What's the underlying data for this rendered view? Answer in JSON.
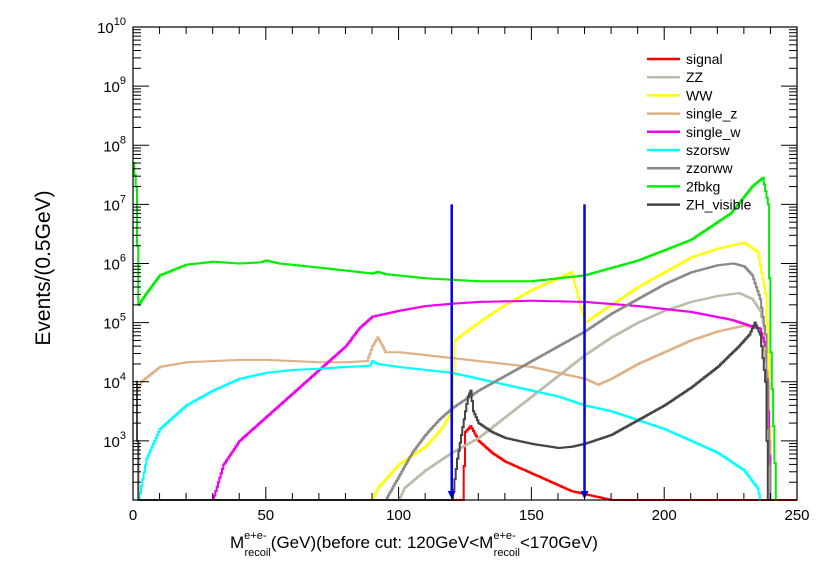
{
  "chart_data": {
    "type": "line",
    "style": "step-histogram",
    "title": "",
    "ylabel": "Events/(0.5GeV)",
    "xlabel": {
      "main": "M",
      "sup": "e+e-",
      "sub": "recoil",
      "rest": "(GeV)(before cut: 120GeV<M",
      "sup2": "e+e-",
      "sub2": "recoil",
      "rest2": "<170GeV)"
    },
    "xlim": [
      0,
      250
    ],
    "ylim_log10": [
      2,
      10
    ],
    "yscale": "log",
    "x_ticks": [
      {
        "value": 0,
        "label": "0"
      },
      {
        "value": 50,
        "label": "50"
      },
      {
        "value": 100,
        "label": "100"
      },
      {
        "value": 150,
        "label": "150"
      },
      {
        "value": 200,
        "label": "200"
      },
      {
        "value": 250,
        "label": "250"
      }
    ],
    "y_ticks": [
      {
        "exp": 3,
        "base": "10",
        "sup": "3"
      },
      {
        "exp": 4,
        "base": "10",
        "sup": "4"
      },
      {
        "exp": 5,
        "base": "10",
        "sup": "5"
      },
      {
        "exp": 6,
        "base": "10",
        "sup": "6"
      },
      {
        "exp": 7,
        "base": "10",
        "sup": "7"
      },
      {
        "exp": 8,
        "base": "10",
        "sup": "8"
      },
      {
        "exp": 9,
        "base": "10",
        "sup": "9"
      },
      {
        "exp": 10,
        "base": "10",
        "sup": "10"
      }
    ],
    "cut_lines": [
      {
        "x": 120,
        "top_log10": 7.0,
        "color": "#0000ee"
      },
      {
        "x": 170,
        "top_log10": 7.0,
        "color": "#0000ee"
      }
    ],
    "legend_position": "top-right",
    "series": [
      {
        "name": "signal",
        "color": "#ff0000",
        "points": [
          [
            120,
            2
          ],
          [
            124,
            2
          ],
          [
            125,
            3.15
          ],
          [
            127,
            3.25
          ],
          [
            130,
            3.0
          ],
          [
            135,
            2.8
          ],
          [
            140,
            2.65
          ],
          [
            145,
            2.55
          ],
          [
            150,
            2.45
          ],
          [
            155,
            2.35
          ],
          [
            160,
            2.25
          ],
          [
            165,
            2.15
          ],
          [
            170,
            2.1
          ],
          [
            175,
            2.05
          ],
          [
            180,
            2.0
          ],
          [
            250,
            2.0
          ]
        ]
      },
      {
        "name": "ZZ",
        "color": "#bbbba8",
        "points": [
          [
            100,
            2.0
          ],
          [
            102,
            2.2
          ],
          [
            110,
            2.5
          ],
          [
            120,
            2.8
          ],
          [
            130,
            3.05
          ],
          [
            140,
            3.4
          ],
          [
            150,
            3.75
          ],
          [
            160,
            4.1
          ],
          [
            170,
            4.45
          ],
          [
            180,
            4.75
          ],
          [
            190,
            5.0
          ],
          [
            200,
            5.2
          ],
          [
            210,
            5.35
          ],
          [
            220,
            5.45
          ],
          [
            228,
            5.5
          ],
          [
            233,
            5.4
          ],
          [
            236,
            5.2
          ],
          [
            238,
            4.8
          ],
          [
            239,
            3.5
          ],
          [
            240,
            2.0
          ]
        ]
      },
      {
        "name": "WW",
        "color": "#ffff00",
        "points": [
          [
            90,
            2.0
          ],
          [
            92,
            2.2
          ],
          [
            100,
            2.6
          ],
          [
            110,
            2.9
          ],
          [
            116,
            3.2
          ],
          [
            120,
            3.5
          ],
          [
            121,
            4.7
          ],
          [
            130,
            5.0
          ],
          [
            140,
            5.3
          ],
          [
            150,
            5.55
          ],
          [
            160,
            5.75
          ],
          [
            165,
            5.85
          ],
          [
            170,
            5.0
          ],
          [
            180,
            5.3
          ],
          [
            190,
            5.6
          ],
          [
            200,
            5.85
          ],
          [
            210,
            6.1
          ],
          [
            220,
            6.25
          ],
          [
            230,
            6.35
          ],
          [
            235,
            6.2
          ],
          [
            238,
            5.5
          ],
          [
            239,
            4.5
          ],
          [
            240,
            2.0
          ]
        ]
      },
      {
        "name": "single_z",
        "color": "#ddb185",
        "points": [
          [
            1,
            3.8
          ],
          [
            3,
            4.0
          ],
          [
            10,
            4.25
          ],
          [
            20,
            4.33
          ],
          [
            30,
            4.35
          ],
          [
            40,
            4.37
          ],
          [
            50,
            4.37
          ],
          [
            60,
            4.35
          ],
          [
            70,
            4.33
          ],
          [
            80,
            4.33
          ],
          [
            88,
            4.35
          ],
          [
            90,
            4.6
          ],
          [
            92,
            4.75
          ],
          [
            95,
            4.5
          ],
          [
            100,
            4.5
          ],
          [
            110,
            4.45
          ],
          [
            120,
            4.4
          ],
          [
            130,
            4.35
          ],
          [
            140,
            4.3
          ],
          [
            150,
            4.25
          ],
          [
            160,
            4.15
          ],
          [
            170,
            4.05
          ],
          [
            175,
            3.95
          ],
          [
            180,
            4.05
          ],
          [
            190,
            4.3
          ],
          [
            200,
            4.5
          ],
          [
            210,
            4.7
          ],
          [
            220,
            4.85
          ],
          [
            230,
            4.95
          ],
          [
            235,
            4.9
          ],
          [
            237,
            4.7
          ],
          [
            239,
            4.0
          ],
          [
            240,
            2.0
          ]
        ]
      },
      {
        "name": "single_w",
        "color": "#ee00ee",
        "points": [
          [
            30,
            2.0
          ],
          [
            34,
            2.6
          ],
          [
            40,
            3.0
          ],
          [
            50,
            3.4
          ],
          [
            60,
            3.8
          ],
          [
            70,
            4.2
          ],
          [
            80,
            4.6
          ],
          [
            85,
            4.9
          ],
          [
            90,
            5.1
          ],
          [
            100,
            5.2
          ],
          [
            110,
            5.28
          ],
          [
            120,
            5.32
          ],
          [
            130,
            5.35
          ],
          [
            150,
            5.37
          ],
          [
            170,
            5.35
          ],
          [
            190,
            5.28
          ],
          [
            210,
            5.18
          ],
          [
            225,
            5.05
          ],
          [
            232,
            4.95
          ],
          [
            236,
            4.9
          ],
          [
            238,
            4.6
          ],
          [
            239,
            3.5
          ],
          [
            240,
            2.0
          ]
        ]
      },
      {
        "name": "szorsw",
        "color": "#00ffff",
        "points": [
          [
            2,
            2.0
          ],
          [
            5,
            2.7
          ],
          [
            10,
            3.2
          ],
          [
            20,
            3.6
          ],
          [
            30,
            3.85
          ],
          [
            40,
            4.05
          ],
          [
            50,
            4.15
          ],
          [
            60,
            4.2
          ],
          [
            70,
            4.22
          ],
          [
            80,
            4.25
          ],
          [
            89,
            4.27
          ],
          [
            90,
            4.35
          ],
          [
            92,
            4.3
          ],
          [
            100,
            4.25
          ],
          [
            110,
            4.2
          ],
          [
            120,
            4.15
          ],
          [
            130,
            4.05
          ],
          [
            140,
            3.95
          ],
          [
            150,
            3.85
          ],
          [
            160,
            3.75
          ],
          [
            170,
            3.6
          ],
          [
            180,
            3.5
          ],
          [
            190,
            3.35
          ],
          [
            200,
            3.2
          ],
          [
            210,
            3.0
          ],
          [
            220,
            2.8
          ],
          [
            230,
            2.5
          ],
          [
            235,
            2.2
          ],
          [
            236,
            2.0
          ]
        ]
      },
      {
        "name": "zzorww",
        "color": "#888888",
        "points": [
          [
            95,
            2.0
          ],
          [
            100,
            2.4
          ],
          [
            105,
            2.8
          ],
          [
            110,
            3.1
          ],
          [
            115,
            3.35
          ],
          [
            120,
            3.55
          ],
          [
            130,
            3.85
          ],
          [
            140,
            4.1
          ],
          [
            150,
            4.35
          ],
          [
            160,
            4.6
          ],
          [
            170,
            4.85
          ],
          [
            180,
            5.15
          ],
          [
            190,
            5.4
          ],
          [
            200,
            5.65
          ],
          [
            210,
            5.85
          ],
          [
            220,
            5.97
          ],
          [
            226,
            6.0
          ],
          [
            230,
            5.95
          ],
          [
            233,
            5.8
          ],
          [
            236,
            5.4
          ],
          [
            238,
            4.8
          ],
          [
            239,
            3.2
          ],
          [
            240,
            2.0
          ]
        ]
      },
      {
        "name": "2fbkg",
        "color": "#00ee00",
        "points": [
          [
            0,
            7.7
          ],
          [
            1,
            7.3
          ],
          [
            2,
            5.3
          ],
          [
            5,
            5.5
          ],
          [
            10,
            5.8
          ],
          [
            20,
            5.98
          ],
          [
            30,
            6.03
          ],
          [
            40,
            6.0
          ],
          [
            48,
            6.02
          ],
          [
            50,
            6.05
          ],
          [
            55,
            6.0
          ],
          [
            70,
            5.93
          ],
          [
            90,
            5.83
          ],
          [
            92,
            5.86
          ],
          [
            95,
            5.82
          ],
          [
            110,
            5.75
          ],
          [
            130,
            5.7
          ],
          [
            150,
            5.7
          ],
          [
            170,
            5.8
          ],
          [
            190,
            6.05
          ],
          [
            210,
            6.4
          ],
          [
            225,
            6.85
          ],
          [
            233,
            7.3
          ],
          [
            237,
            7.45
          ],
          [
            239,
            7.0
          ],
          [
            240,
            4.5
          ],
          [
            242,
            2.0
          ]
        ]
      },
      {
        "name": "ZH_visible",
        "color": "#444444",
        "points": [
          [
            1,
            4.0
          ],
          [
            2,
            2.0
          ],
          [
            120,
            2.0
          ],
          [
            122,
            2.7
          ],
          [
            125,
            3.5
          ],
          [
            126,
            3.75
          ],
          [
            127,
            3.85
          ],
          [
            128,
            3.5
          ],
          [
            130,
            3.3
          ],
          [
            135,
            3.15
          ],
          [
            140,
            3.05
          ],
          [
            150,
            2.95
          ],
          [
            160,
            2.88
          ],
          [
            165,
            2.9
          ],
          [
            170,
            2.95
          ],
          [
            180,
            3.1
          ],
          [
            190,
            3.35
          ],
          [
            200,
            3.6
          ],
          [
            210,
            3.9
          ],
          [
            220,
            4.25
          ],
          [
            228,
            4.6
          ],
          [
            232,
            4.8
          ],
          [
            234,
            5.0
          ],
          [
            236,
            4.8
          ],
          [
            238,
            4.0
          ],
          [
            239,
            2.0
          ],
          [
            240,
            2.0
          ]
        ]
      }
    ]
  }
}
